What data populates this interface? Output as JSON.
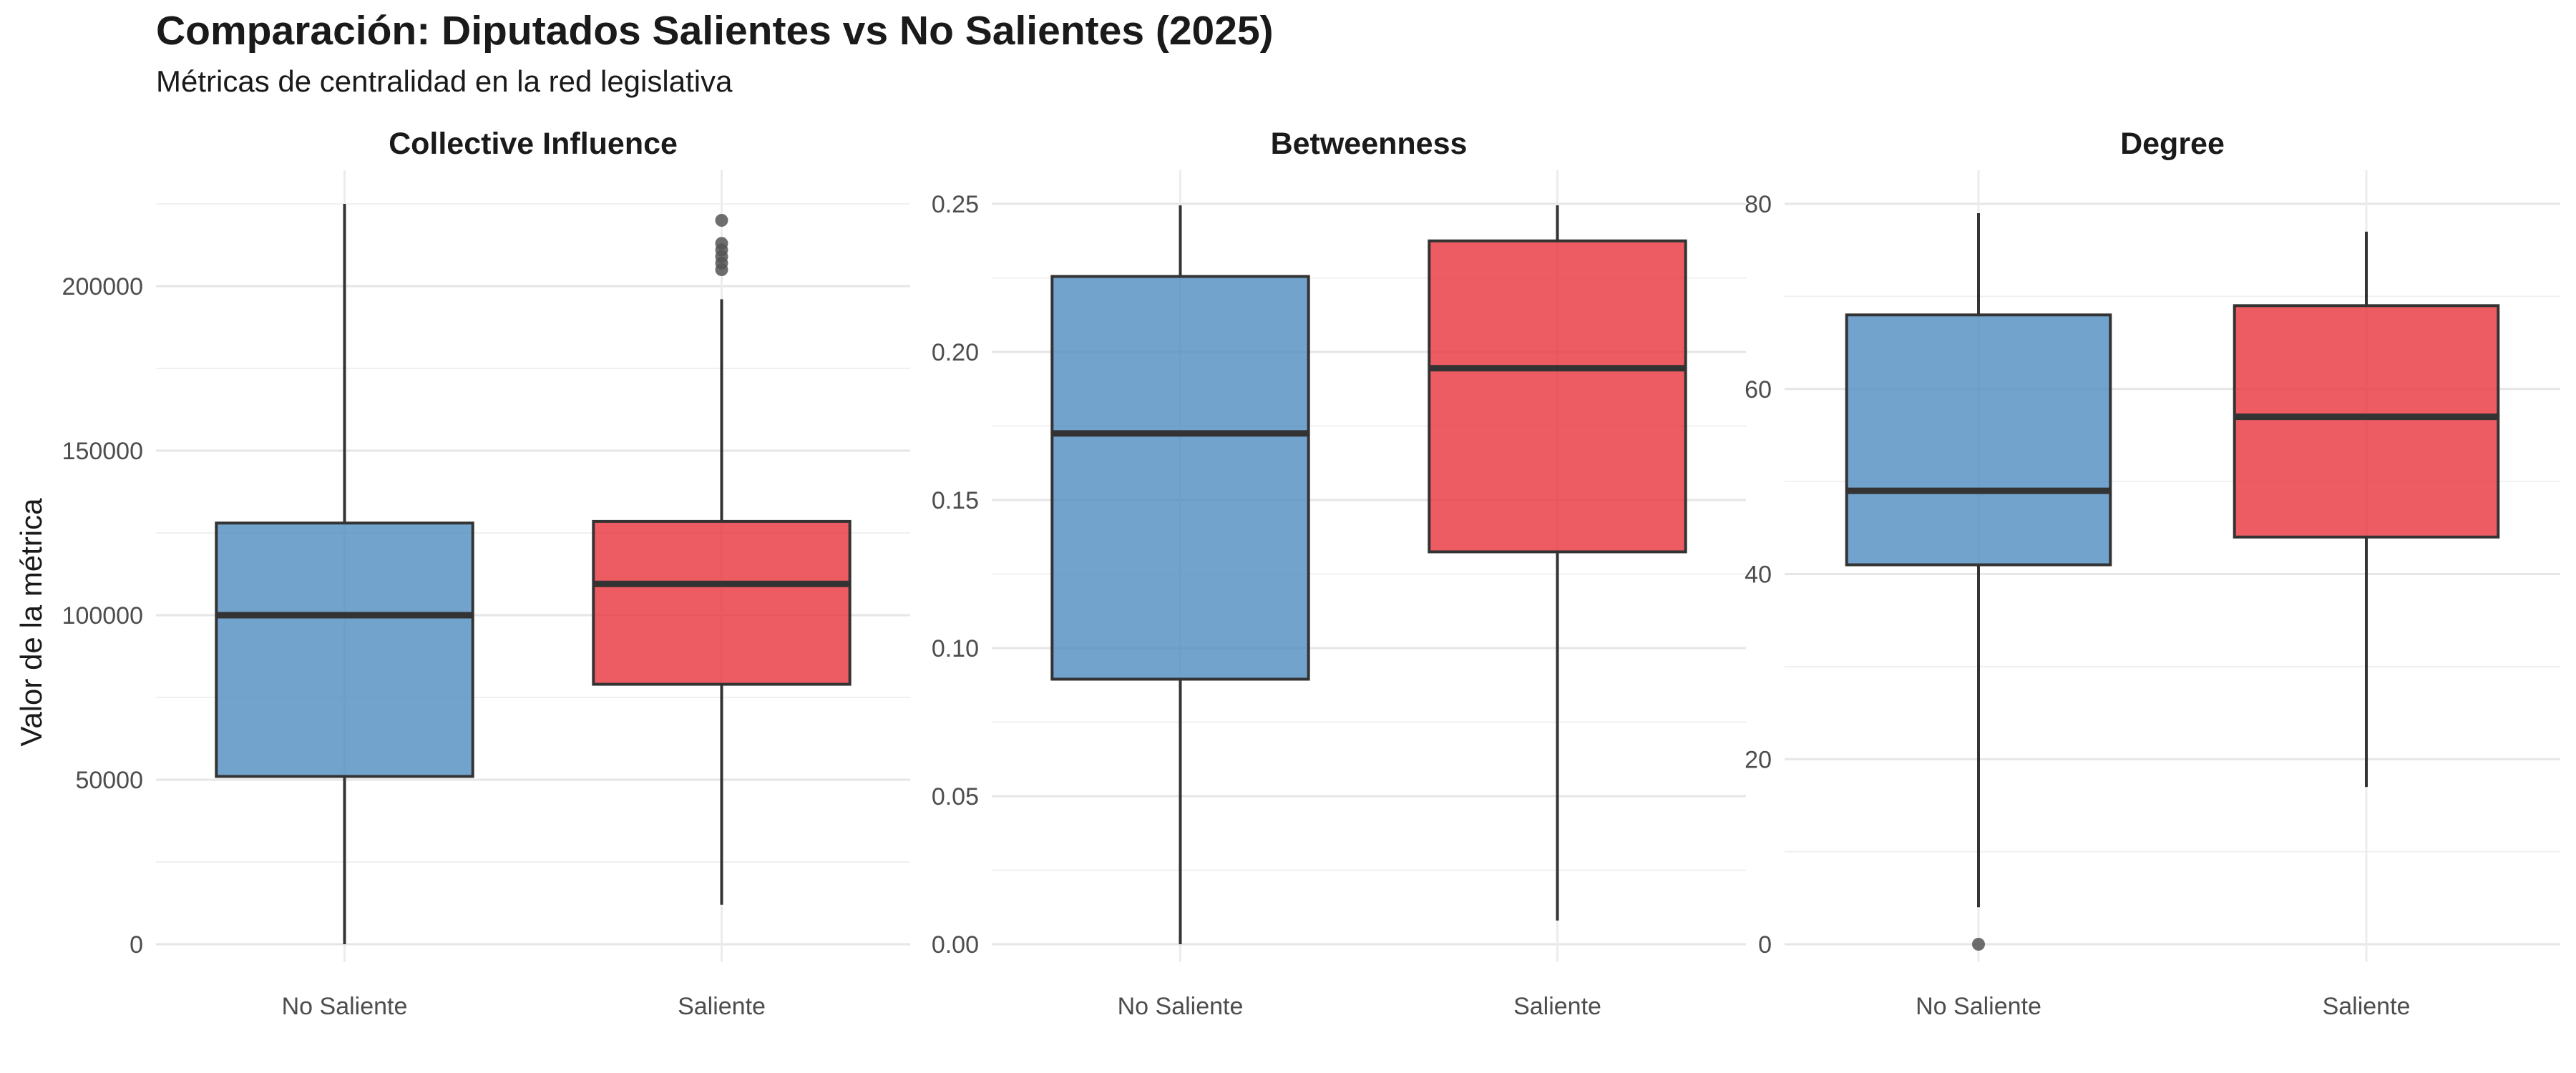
{
  "title": "Comparación: Diputados Salientes vs No Salientes (2025)",
  "subtitle": "Métricas de centralidad en la red legislativa",
  "ylabel": "Valor de la métrica",
  "colors": {
    "No Saliente": "#4f8cc0",
    "Saliente": "#e8333b",
    "box_outline": "#333333",
    "outlier": "#555555"
  },
  "chart_data": [
    {
      "type": "box",
      "title": "Collective Influence",
      "categories": [
        "No Saliente",
        "Saliente"
      ],
      "ylim": [
        0,
        225000
      ],
      "yticks": [
        0,
        50000,
        100000,
        150000,
        200000
      ],
      "ytick_labels": [
        "0",
        "50000",
        "100000",
        "150000",
        "200000"
      ],
      "boxes": [
        {
          "category": "No Saliente",
          "min": 0,
          "q1": 51000,
          "median": 100000,
          "q3": 128000,
          "max": 225000,
          "outliers": []
        },
        {
          "category": "Saliente",
          "min": 12000,
          "q1": 79000,
          "median": 109500,
          "q3": 128500,
          "max": 196000,
          "outliers": [
            205000,
            207000,
            209000,
            211000,
            213000,
            220000
          ]
        }
      ]
    },
    {
      "type": "box",
      "title": "Betweenness",
      "categories": [
        "No Saliente",
        "Saliente"
      ],
      "ylim": [
        0,
        0.25
      ],
      "yticks": [
        0,
        0.05,
        0.1,
        0.15,
        0.2,
        0.25
      ],
      "ytick_labels": [
        "0.00",
        "0.05",
        "0.10",
        "0.15",
        "0.20",
        "0.25"
      ],
      "boxes": [
        {
          "category": "No Saliente",
          "min": 0,
          "q1": 0.0895,
          "median": 0.1725,
          "q3": 0.2255,
          "max": 0.2495,
          "outliers": []
        },
        {
          "category": "Saliente",
          "min": 0.008,
          "q1": 0.1325,
          "median": 0.1945,
          "q3": 0.2375,
          "max": 0.2495,
          "outliers": []
        }
      ]
    },
    {
      "type": "box",
      "title": "Degree",
      "categories": [
        "No Saliente",
        "Saliente"
      ],
      "ylim": [
        0,
        80
      ],
      "yticks": [
        0,
        20,
        40,
        60,
        80
      ],
      "ytick_labels": [
        "0",
        "20",
        "40",
        "60",
        "80"
      ],
      "boxes": [
        {
          "category": "No Saliente",
          "min": 4,
          "q1": 41,
          "median": 49,
          "q3": 68,
          "max": 79,
          "outliers": [
            0
          ]
        },
        {
          "category": "Saliente",
          "min": 17,
          "q1": 44,
          "median": 57,
          "q3": 69,
          "max": 77,
          "outliers": []
        }
      ]
    }
  ]
}
